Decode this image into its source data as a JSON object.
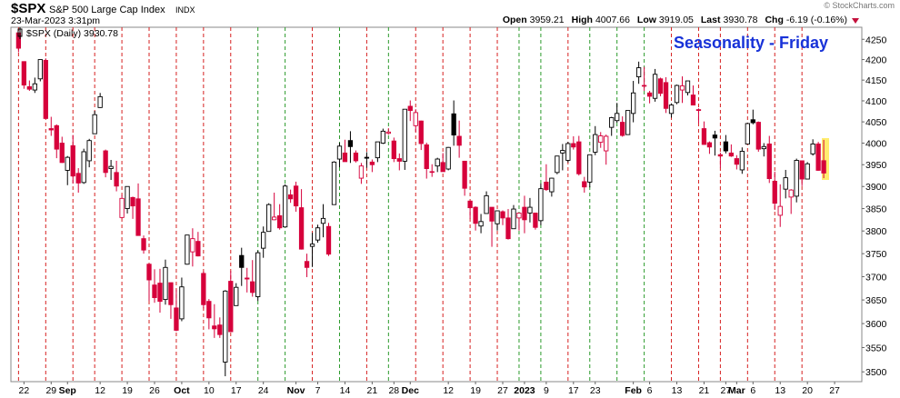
{
  "header": {
    "symbol": "$SPX",
    "name": "S&P 500 Large Cap Index",
    "exchange": "INDX",
    "timestamp": "23-Mar-2023 3:31pm",
    "quote": [
      {
        "label": "Open",
        "value": "3959.21"
      },
      {
        "label": "High",
        "value": "4007.66"
      },
      {
        "label": "Low",
        "value": "3919.05"
      },
      {
        "label": "Last",
        "value": "3930.78"
      },
      {
        "label": "Chg",
        "value": "-6.19 (-0.16%)"
      }
    ],
    "copyright": "© StockCharts.com"
  },
  "chart_data": {
    "type": "candlestick",
    "title": "Seasonality - Friday",
    "legend": "$SPX (Daily) 3930.78",
    "log_scale": true,
    "up_color": "#000000",
    "down_color": "#d6003b",
    "xlim": [
      -1.4,
      155
    ],
    "ylim": [
      3480,
      4280
    ],
    "yticks": [
      3500,
      3550,
      3600,
      3650,
      3700,
      3750,
      3800,
      3850,
      3900,
      3950,
      4000,
      4050,
      4100,
      4150,
      4200,
      4250
    ],
    "xticks": [
      {
        "value": 1,
        "label": "22"
      },
      {
        "value": 6,
        "label": "29"
      },
      {
        "value": 9,
        "label": "Sep"
      },
      {
        "value": 15,
        "label": "12"
      },
      {
        "value": 20,
        "label": "19"
      },
      {
        "value": 25,
        "label": "26"
      },
      {
        "value": 30,
        "label": "Oct"
      },
      {
        "value": 35,
        "label": "10"
      },
      {
        "value": 40,
        "label": "17"
      },
      {
        "value": 45,
        "label": "24"
      },
      {
        "value": 51,
        "label": "Nov"
      },
      {
        "value": 55,
        "label": "7"
      },
      {
        "value": 60,
        "label": "14"
      },
      {
        "value": 65,
        "label": "21"
      },
      {
        "value": 69,
        "label": "28"
      },
      {
        "value": 72,
        "label": "Dec"
      },
      {
        "value": 79,
        "label": "12"
      },
      {
        "value": 84,
        "label": "19"
      },
      {
        "value": 89,
        "label": "27"
      },
      {
        "value": 93,
        "label": "2023"
      },
      {
        "value": 97,
        "label": "9"
      },
      {
        "value": 102,
        "label": "17"
      },
      {
        "value": 106,
        "label": "23"
      },
      {
        "value": 113,
        "label": "Feb"
      },
      {
        "value": 116,
        "label": "6"
      },
      {
        "value": 121,
        "label": "13"
      },
      {
        "value": 126,
        "label": "21"
      },
      {
        "value": 130,
        "label": "27"
      },
      {
        "value": 132,
        "label": "Mar"
      },
      {
        "value": 135,
        "label": "6"
      },
      {
        "value": 140,
        "label": "13"
      },
      {
        "value": 145,
        "label": "20"
      },
      {
        "value": 150,
        "label": "27"
      }
    ],
    "major_xticks": [
      "Sep",
      "Oct",
      "Nov",
      "Dec",
      "2023",
      "Feb",
      "Mar"
    ],
    "seasonality_lines": [
      {
        "value": 0,
        "color": "#d62020"
      },
      {
        "value": 5,
        "color": "#d62020"
      },
      {
        "value": 10,
        "color": "#d62020"
      },
      {
        "value": 14,
        "color": "#d62020"
      },
      {
        "value": 19,
        "color": "#d62020"
      },
      {
        "value": 24,
        "color": "#d62020"
      },
      {
        "value": 29,
        "color": "#d62020"
      },
      {
        "value": 34,
        "color": "#d62020"
      },
      {
        "value": 39,
        "color": "#d62020"
      },
      {
        "value": 44,
        "color": "#2a9a2a"
      },
      {
        "value": 49,
        "color": "#2a9a2a"
      },
      {
        "value": 54,
        "color": "#d62020"
      },
      {
        "value": 59,
        "color": "#2a9a2a"
      },
      {
        "value": 64,
        "color": "#d62020"
      },
      {
        "value": 68,
        "color": "#2a9a2a"
      },
      {
        "value": 73,
        "color": "#d62020"
      },
      {
        "value": 78,
        "color": "#d62020"
      },
      {
        "value": 83,
        "color": "#d62020"
      },
      {
        "value": 88,
        "color": "#d62020"
      },
      {
        "value": 92,
        "color": "#2a9a2a"
      },
      {
        "value": 96,
        "color": "#2a9a2a"
      },
      {
        "value": 101,
        "color": "#d62020"
      },
      {
        "value": 105,
        "color": "#2a9a2a"
      },
      {
        "value": 110,
        "color": "#2a9a2a"
      },
      {
        "value": 115,
        "color": "#2a9a2a"
      },
      {
        "value": 120,
        "color": "#d62020"
      },
      {
        "value": 125,
        "color": "#d62020"
      },
      {
        "value": 129,
        "color": "#d62020"
      },
      {
        "value": 134,
        "color": "#d62020"
      },
      {
        "value": 139,
        "color": "#d62020"
      },
      {
        "value": 144,
        "color": "#d62020"
      }
    ],
    "open": [
      4266,
      4195,
      4134,
      4126,
      4153,
      4198,
      4034,
      4041,
      4000,
      3937,
      3994,
      3930,
      3909,
      3959,
      4022,
      4084,
      3982,
      3941,
      3932,
      3830,
      3850,
      3875,
      3872,
      3783,
      3727,
      3682,
      3686,
      3651,
      3687,
      3633,
      3610,
      3727,
      3754,
      3777,
      3707,
      3647,
      3595,
      3597,
      3520,
      3690,
      3638,
      3746,
      3697,
      3689,
      3657,
      3762,
      3799,
      3825,
      3834,
      3809,
      3881,
      3901,
      3852,
      3733,
      3766,
      3780,
      3817,
      3810,
      3859,
      3963,
      3977,
      4006,
      3977,
      3919,
      3967,
      3956,
      3966,
      4000,
      4023,
      4005,
      3964,
      3958,
      4087,
      4041,
      4052,
      3996,
      3934,
      3947,
      3955,
      3940,
      4069,
      4016,
      3958,
      3867,
      3853,
      3811,
      3839,
      3853,
      3816,
      3843,
      3829,
      3805,
      3829,
      3853,
      3840,
      3840,
      3823,
      3910,
      3888,
      3932,
      3977,
      3960,
      3999,
      4003,
      3911,
      3910,
      3979,
      4002,
      3982,
      4037,
      4053,
      4049,
      4020,
      4070,
      4158,
      4137,
      4119,
      4106,
      4153,
      4144,
      4070,
      4096,
      4126,
      4120,
      4114,
      4077,
      4034,
      4001,
      4019,
      3973,
      4003,
      3977,
      3964,
      3938,
      3998,
      4055,
      4049,
      3987,
      3998,
      3912,
      3835,
      3894,
      3876,
      3878,
      3959,
      3917,
      3975,
      3998,
      3959.21
    ],
    "high": [
      4266,
      4196,
      4149,
      4156,
      4200,
      4203,
      4062,
      4044,
      4015,
      3970,
      4019,
      3942,
      3987,
      4010,
      4076,
      4119,
      3985,
      3961,
      3959,
      3881,
      3900,
      3877,
      3907,
      3790,
      3727,
      3716,
      3717,
      3737,
      3687,
      3672,
      3698,
      3791,
      3806,
      3798,
      3711,
      3652,
      3641,
      3613,
      3671,
      3712,
      3686,
      3763,
      3719,
      3736,
      3757,
      3810,
      3862,
      3886,
      3860,
      3905,
      3893,
      3911,
      3894,
      3750,
      3796,
      3814,
      3860,
      3818,
      3958,
      4001,
      4008,
      4028,
      3983,
      3954,
      3979,
      3962,
      4003,
      4034,
      4035,
      4013,
      3976,
      4080,
      4101,
      4080,
      4053,
      4001,
      3951,
      3966,
      3977,
      3991,
      4101,
      4053,
      3959,
      3868,
      3855,
      3838,
      3889,
      3853,
      3846,
      3846,
      3849,
      3858,
      3840,
      3879,
      3874,
      3840,
      3907,
      3951,
      3920,
      3970,
      3998,
      4003,
      4016,
      4017,
      3922,
      3973,
      4040,
      4026,
      4020,
      4062,
      4095,
      4063,
      4077,
      4148,
      4195,
      4182,
      4124,
      4177,
      4156,
      4157,
      4094,
      4139,
      4159,
      4148,
      4137,
      4082,
      4051,
      4004,
      4029,
      3978,
      4019,
      3997,
      3972,
      3990,
      4048,
      4079,
      4051,
      4000,
      4017,
      3934,
      3905,
      3938,
      3894,
      3964,
      3959,
      3956,
      4009,
      4003,
      4007.66
    ],
    "low": [
      4218,
      4129,
      4124,
      4119,
      4147,
      4057,
      4017,
      3965,
      3954,
      3903,
      3907,
      3886,
      3906,
      3944,
      4022,
      4083,
      3921,
      3915,
      3889,
      3828,
      3839,
      3827,
      3790,
      3750,
      3648,
      3644,
      3623,
      3640,
      3610,
      3584,
      3605,
      3726,
      3722,
      3744,
      3632,
      3588,
      3570,
      3570,
      3491,
      3583,
      3638,
      3680,
      3666,
      3657,
      3648,
      3741,
      3799,
      3824,
      3803,
      3808,
      3863,
      3843,
      3759,
      3699,
      3721,
      3774,
      3786,
      3745,
      3859,
      3944,
      3957,
      3954,
      3955,
      3906,
      3943,
      3933,
      3956,
      3998,
      4020,
      3956,
      3937,
      3938,
      4052,
      4026,
      3984,
      3918,
      3922,
      3933,
      3934,
      3937,
      3994,
      3966,
      3879,
      3827,
      3801,
      3795,
      3839,
      3765,
      3801,
      3813,
      3781,
      3805,
      3801,
      3795,
      3819,
      3803,
      3813,
      3890,
      3877,
      3928,
      3937,
      3955,
      3985,
      3925,
      3886,
      3898,
      3972,
      3989,
      3950,
      4017,
      4048,
      4015,
      4020,
      4049,
      4141,
      4124,
      4094,
      4098,
      4111,
      4071,
      4060,
      4092,
      4095,
      4113,
      4089,
      4047,
      3996,
      3975,
      3971,
      3943,
      3976,
      3968,
      3939,
      3929,
      3998,
      4044,
      3980,
      3969,
      3908,
      3847,
      3809,
      3873,
      3838,
      3864,
      3901,
      3917,
      3971,
      3936,
      3919.05
    ],
    "close": [
      4228,
      4138,
      4128,
      4141,
      4200,
      4058,
      4031,
      3986,
      3955,
      3967,
      3924,
      3908,
      3980,
      4006,
      4067,
      4110,
      3932,
      3946,
      3901,
      3873,
      3900,
      3856,
      3790,
      3758,
      3693,
      3655,
      3647,
      3720,
      3640,
      3586,
      3678,
      3791,
      3783,
      3745,
      3640,
      3612,
      3589,
      3577,
      3669,
      3583,
      3677,
      3720,
      3695,
      3666,
      3752,
      3797,
      3859,
      3831,
      3807,
      3901,
      3872,
      3856,
      3760,
      3720,
      3771,
      3807,
      3828,
      3749,
      3956,
      3993,
      3957,
      3992,
      3959,
      3947,
      3965,
      3950,
      4003,
      4028,
      4026,
      3964,
      3958,
      4080,
      4077,
      4072,
      3999,
      3941,
      3933,
      3963,
      3934,
      3990,
      4019,
      3995,
      3896,
      3852,
      3817,
      3821,
      3879,
      3822,
      3845,
      3829,
      3783,
      3849,
      3840,
      3825,
      3853,
      3808,
      3895,
      3893,
      3919,
      3970,
      3983,
      3999,
      3991,
      3929,
      3899,
      3973,
      4020,
      4017,
      4016,
      4060,
      4070,
      4018,
      4077,
      4119,
      4180,
      4136,
      4111,
      4164,
      4118,
      4082,
      4090,
      4137,
      4136,
      4148,
      4090,
      4079,
      3997,
      3991,
      4012,
      3970,
      3982,
      3970,
      3951,
      3981,
      4046,
      4048,
      3986,
      3992,
      3918,
      3862,
      3855,
      3920,
      3892,
      3960,
      3917,
      3952,
      3998,
      3937,
      3930.78
    ]
  }
}
